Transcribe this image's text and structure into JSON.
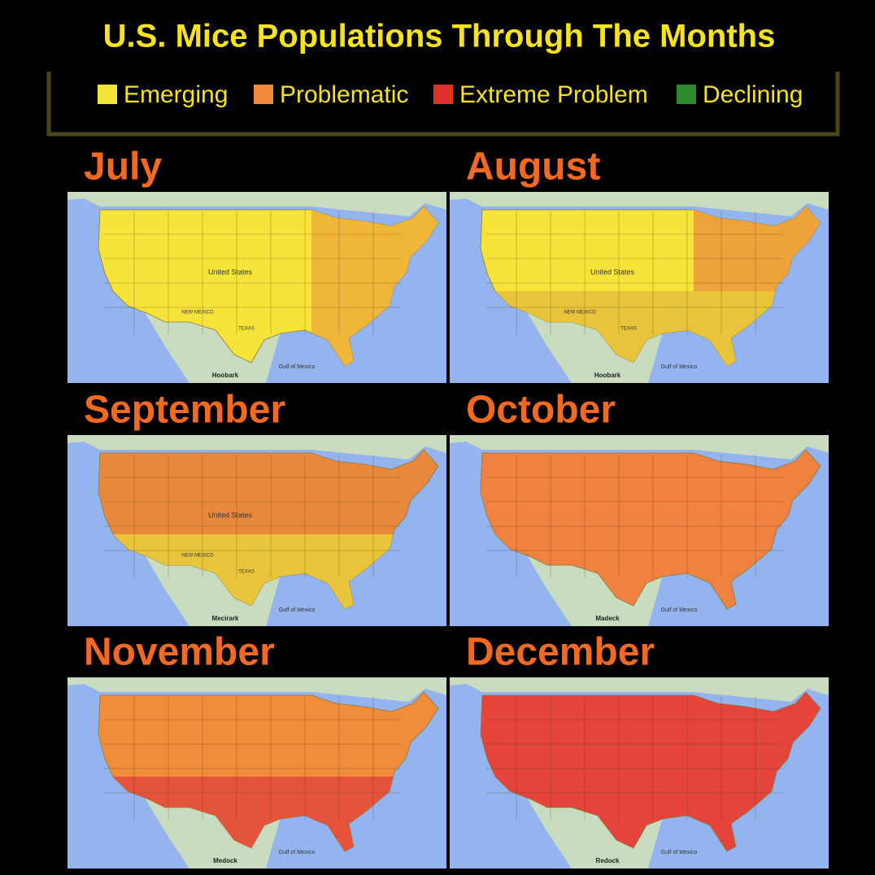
{
  "title": "U.S. Mice Populations Through The Months",
  "legend": [
    {
      "label": "Emerging",
      "color": "#f7e43a"
    },
    {
      "label": "Problematic",
      "color": "#f08a3a"
    },
    {
      "label": "Extreme Problem",
      "color": "#e0302a"
    },
    {
      "label": "Declining",
      "color": "#2f8a2f"
    }
  ],
  "panels": [
    {
      "month": "July",
      "fill": {
        "base": "#f7e43a",
        "east": "#f0b63a"
      },
      "map_labels": [
        "Gulf of Mexico",
        "United States",
        "TEXAS",
        "NEW MEXICO"
      ],
      "caption": "Hoobark"
    },
    {
      "month": "August",
      "fill": {
        "base": "#f7e43a",
        "east": "#eea23a",
        "south": "#e8c43a"
      },
      "map_labels": [
        "Gulf of Mexico",
        "United States",
        "TEXAS",
        "NEW MEXICO"
      ],
      "caption": "Hoobark"
    },
    {
      "month": "September",
      "fill": {
        "base": "#e8883c",
        "south": "#e8c53a"
      },
      "map_labels": [
        "Gulf of Mexico",
        "United States",
        "TEXAS",
        "NEW MEXICO"
      ],
      "caption": "Mecirark"
    },
    {
      "month": "October",
      "fill": {
        "base": "#ef8240"
      },
      "map_labels": [
        "Gulf of Mexico"
      ],
      "caption": "Madeck"
    },
    {
      "month": "November",
      "fill": {
        "base": "#f08c3a",
        "south": "#e5533a"
      },
      "map_labels": [
        "Gulf of Mexico"
      ],
      "caption": "Medock"
    },
    {
      "month": "December",
      "fill": {
        "base": "#e4443a"
      },
      "map_labels": [
        "Gulf of Mexico"
      ],
      "caption": "Redock"
    }
  ]
}
